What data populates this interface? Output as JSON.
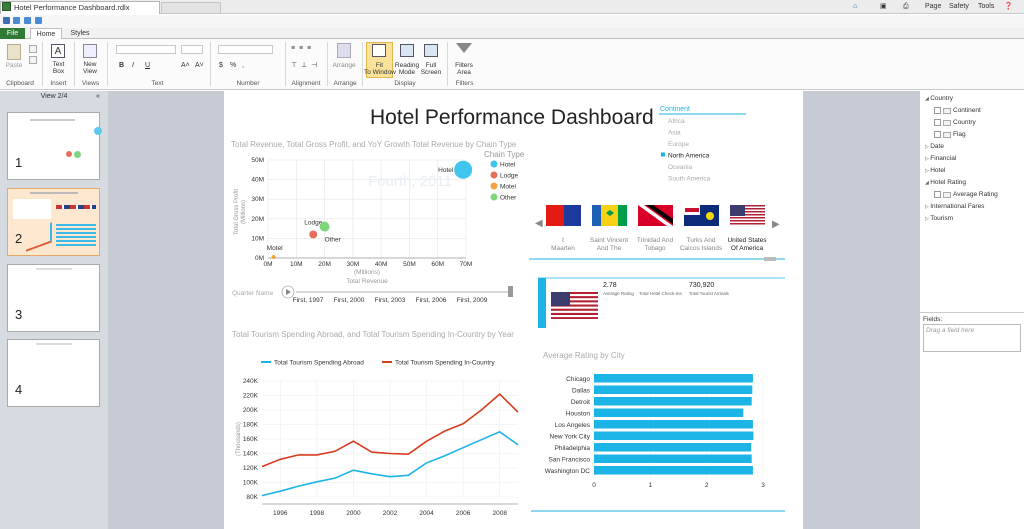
{
  "window": {
    "title": "Hotel Performance Dashboard.rdlx",
    "toolbar_items": [
      "Page",
      "Safety",
      "Tools"
    ]
  },
  "ribbon": {
    "tabs": [
      "File",
      "Home",
      "Styles"
    ],
    "buttons": {
      "paste": "Paste",
      "text_box": "Text Box",
      "new_view": "New View",
      "arrange": "Arrange",
      "fit_to_window": "Fit To Window",
      "reading_mode": "Reading Mode",
      "full_screen": "Full Screen",
      "filters_area": "Filters Area"
    },
    "groups": {
      "clipboard": "Clipboard",
      "insert": "Insert",
      "views": "Views",
      "text": "Text",
      "number": "Number",
      "alignment": "Alignment",
      "arrange": "Arrange",
      "display": "Display",
      "filters": "Filters"
    }
  },
  "views_pane": {
    "label": "View 2/4",
    "thumbnails": [
      "1",
      "2",
      "3",
      "4"
    ]
  },
  "dashboard": {
    "title": "Hotel Performance Dashboard",
    "continent_filter": {
      "header": "Continent",
      "items": [
        "Africa",
        "Asia",
        "Europe",
        "North America",
        "Oceania",
        "South America"
      ],
      "selected": "North America"
    },
    "flags": [
      {
        "label": "t Maarten",
        "colors": [
          "#e41b13",
          "#1c3a9e",
          "#ffffff"
        ]
      },
      {
        "label": "Saint Vincent And The",
        "colors": [
          "#1c5fb3",
          "#f7d116",
          "#009e49"
        ]
      },
      {
        "label": "Trinidad And Tobago",
        "colors": [
          "#d80027",
          "#000000",
          "#ffffff"
        ]
      },
      {
        "label": "Turks And Caicos Islands",
        "colors": [
          "#0b2a7a",
          "#c8102e",
          "#ffffff"
        ]
      },
      {
        "label": "United States Of America",
        "colors": [
          "#b22234",
          "#ffffff",
          "#3c3b6e"
        ]
      }
    ],
    "card": {
      "avg_rating_value": "2.78",
      "avg_rating_label": "Average Rating",
      "checkins_label": "Total Hotel Check-Ins",
      "arrivals_value": "730,920",
      "arrivals_label": "Total Tourist Arrivals"
    },
    "quarter_label": "Quarter Name"
  },
  "chart_data": [
    {
      "type": "scatter",
      "title": "Total Revenue, Total Gross Profit, and YoY Growth Total Revenue by Chain Type",
      "xlabel": "Total Revenue",
      "x_unit": "(Millions)",
      "ylabel": "Total Gross Profit",
      "y_unit": "(Millions)",
      "x_ticks": [
        "0M",
        "10M",
        "20M",
        "30M",
        "40M",
        "50M",
        "60M",
        "70M"
      ],
      "y_ticks": [
        "0M",
        "10M",
        "20M",
        "30M",
        "40M",
        "50M"
      ],
      "xlim": [
        0,
        70
      ],
      "ylim": [
        0,
        50
      ],
      "legend_title": "Chain Type",
      "watermark": "Fourth, 2011",
      "series": [
        {
          "name": "Hotel",
          "x": 69,
          "y": 45,
          "color": "#3fc5ee",
          "size": 9
        },
        {
          "name": "Lodge",
          "x": 16,
          "y": 12,
          "color": "#e3705a",
          "size": 4
        },
        {
          "name": "Motel",
          "x": 2,
          "y": 0.5,
          "color": "#f2a541",
          "size": 2
        },
        {
          "name": "Other",
          "x": 20,
          "y": 16,
          "color": "#7dd67d",
          "size": 5
        }
      ],
      "play_axis": [
        "First, 1997",
        "First, 2000",
        "First, 2003",
        "First, 2006",
        "First, 2009"
      ]
    },
    {
      "type": "line",
      "title": "Total Tourism Spending Abroad, and Total Tourism Spending In-Country by Year",
      "ylabel": "(Thousands)",
      "x": [
        1995,
        1996,
        1997,
        1998,
        1999,
        2000,
        2001,
        2002,
        2003,
        2004,
        2005,
        2006,
        2007,
        2008,
        2009
      ],
      "x_ticks": [
        "1996",
        "1998",
        "2000",
        "2002",
        "2004",
        "2006",
        "2008"
      ],
      "y_ticks": [
        "80K",
        "100K",
        "120K",
        "140K",
        "160K",
        "180K",
        "200K",
        "220K",
        "240K"
      ],
      "ylim": [
        80,
        240
      ],
      "series": [
        {
          "name": "Total Tourism Spending Abroad",
          "color": "#1cb3e6",
          "values": [
            82,
            88,
            95,
            101,
            106,
            117,
            112,
            108,
            110,
            127,
            137,
            148,
            159,
            170,
            152
          ]
        },
        {
          "name": "Total Tourism Spending In-Country",
          "color": "#d63c1e",
          "values": [
            122,
            132,
            138,
            138,
            143,
            157,
            142,
            140,
            139,
            157,
            171,
            181,
            200,
            222,
            197
          ]
        }
      ]
    },
    {
      "type": "bar",
      "title": "Average Rating by City",
      "categories": [
        "Chicago",
        "Dallas",
        "Detroit",
        "Houston",
        "Los Angeles",
        "New York City",
        "Philadelphia",
        "San Francisco",
        "Washington DC"
      ],
      "values": [
        2.82,
        2.81,
        2.8,
        2.65,
        2.82,
        2.83,
        2.79,
        2.8,
        2.82
      ],
      "x_ticks": [
        "0",
        "1",
        "2",
        "3"
      ],
      "xlim": [
        0,
        3
      ],
      "color": "#1cb3e6"
    }
  ],
  "fields_pane": {
    "tree": [
      {
        "label": "Country",
        "children": [
          "Continent",
          "Country",
          "Flag"
        ]
      },
      {
        "label": "Date"
      },
      {
        "label": "Financial"
      },
      {
        "label": "Hotel"
      },
      {
        "label": "Hotel Rating",
        "children": [
          "Average Rating"
        ]
      },
      {
        "label": "International Fares"
      },
      {
        "label": "Tourism"
      }
    ],
    "fields_label": "Fields:",
    "drop_placeholder": "Drag a field here"
  }
}
